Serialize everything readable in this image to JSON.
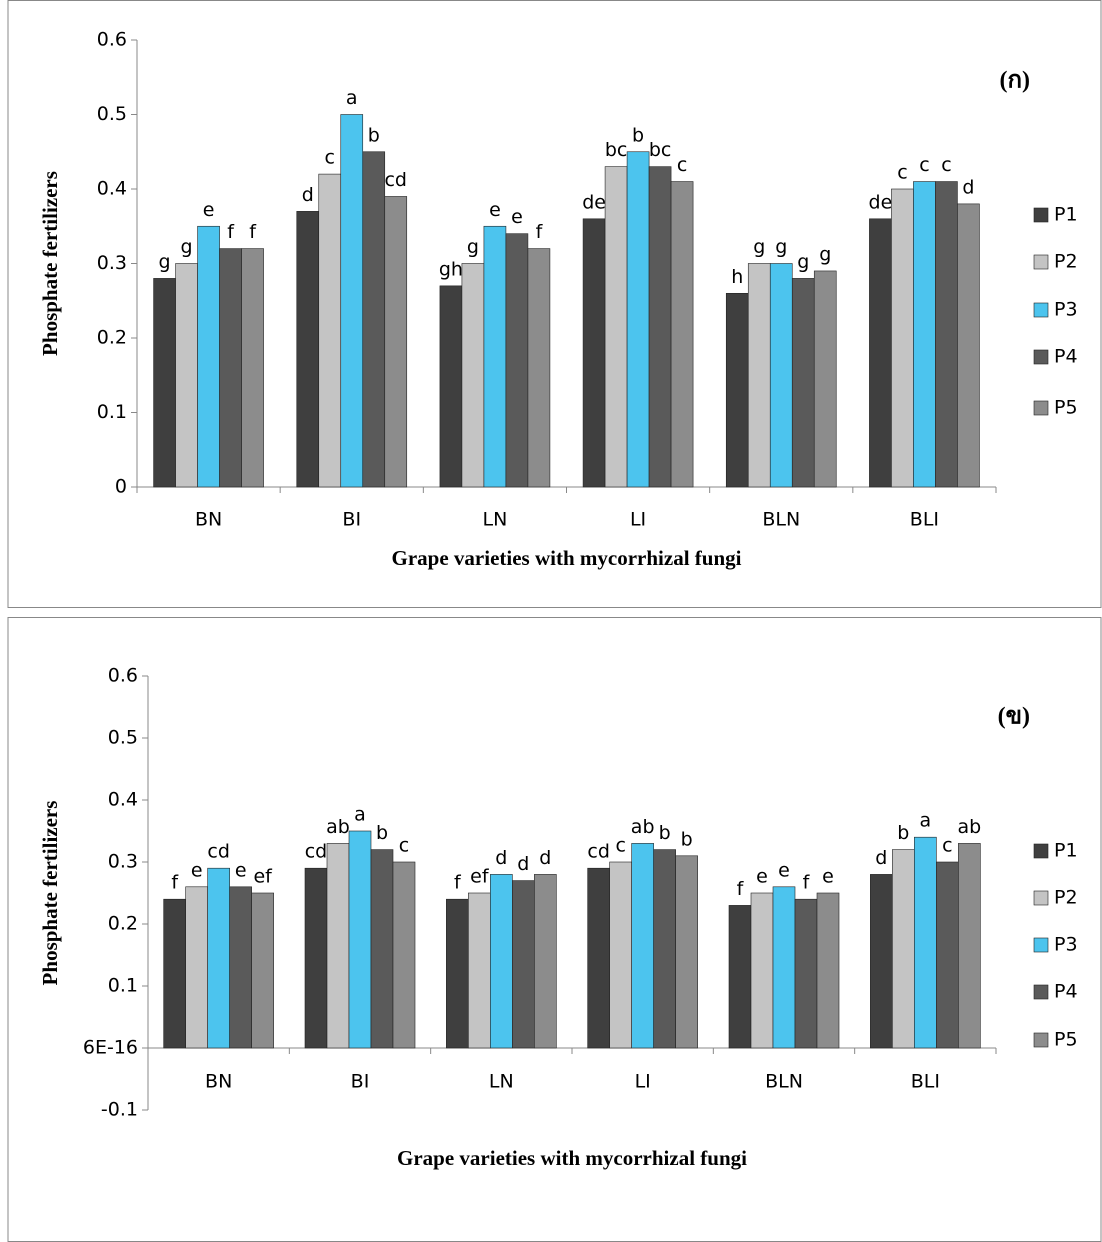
{
  "chart_data": [
    {
      "type": "bar",
      "annotation": "(ก)",
      "y_label": "Phosphate fertilizers",
      "x_label": "Grape varieties with mycorrhizal fungi",
      "categories": [
        "BN",
        "BI",
        "LN",
        "LI",
        "BLN",
        "BLI"
      ],
      "series": [
        {
          "name": "P1",
          "color": "#3f3f3f",
          "values": [
            0.28,
            0.37,
            0.27,
            0.36,
            0.26,
            0.36
          ],
          "value_labels": [
            "g",
            "d",
            "gh",
            "de",
            "h",
            "de"
          ]
        },
        {
          "name": "P2",
          "color": "#c4c4c4",
          "values": [
            0.3,
            0.42,
            0.3,
            0.43,
            0.3,
            0.4
          ],
          "value_labels": [
            "g",
            "c",
            "g",
            "bc",
            "g",
            "c"
          ]
        },
        {
          "name": "P3",
          "color": "#4cc4ee",
          "values": [
            0.35,
            0.5,
            0.35,
            0.45,
            0.3,
            0.41
          ],
          "value_labels": [
            "e",
            "a",
            "e",
            "b",
            "g",
            "c"
          ]
        },
        {
          "name": "P4",
          "color": "#5a5a5a",
          "values": [
            0.32,
            0.45,
            0.34,
            0.43,
            0.28,
            0.41
          ],
          "value_labels": [
            "f",
            "b",
            "e",
            "bc",
            "g",
            "c"
          ]
        },
        {
          "name": "P5",
          "color": "#8c8c8c",
          "values": [
            0.32,
            0.39,
            0.32,
            0.41,
            0.29,
            0.38
          ],
          "value_labels": [
            "f",
            "cd",
            "f",
            "c",
            "g",
            "d"
          ]
        }
      ],
      "ylim": [
        0,
        0.6
      ],
      "yticks": [
        0,
        0.1,
        0.2,
        0.3,
        0.4,
        0.5,
        0.6
      ],
      "legend": "right"
    },
    {
      "type": "bar",
      "annotation": "(ข)",
      "y_label": "Phosphate fertilizers",
      "x_label": "Grape varieties with mycorrhizal fungi",
      "categories": [
        "BN",
        "BI",
        "LN",
        "LI",
        "BLN",
        "BLI"
      ],
      "series": [
        {
          "name": "P1",
          "color": "#3f3f3f",
          "values": [
            0.24,
            0.29,
            0.24,
            0.29,
            0.23,
            0.28
          ],
          "value_labels": [
            "f",
            "cd",
            "f",
            "cd",
            "f",
            "d"
          ]
        },
        {
          "name": "P2",
          "color": "#c4c4c4",
          "values": [
            0.26,
            0.33,
            0.25,
            0.3,
            0.25,
            0.32
          ],
          "value_labels": [
            "e",
            "ab",
            "ef",
            "c",
            "e",
            "b"
          ]
        },
        {
          "name": "P3",
          "color": "#4cc4ee",
          "values": [
            0.29,
            0.35,
            0.28,
            0.33,
            0.26,
            0.34
          ],
          "value_labels": [
            "cd",
            "a",
            "d",
            "ab",
            "e",
            "a"
          ]
        },
        {
          "name": "P4",
          "color": "#5a5a5a",
          "values": [
            0.26,
            0.32,
            0.27,
            0.32,
            0.24,
            0.3
          ],
          "value_labels": [
            "e",
            "b",
            "d",
            "b",
            "f",
            "c"
          ]
        },
        {
          "name": "P5",
          "color": "#8c8c8c",
          "values": [
            0.25,
            0.3,
            0.28,
            0.31,
            0.25,
            0.33
          ],
          "value_labels": [
            "ef",
            "c",
            "d",
            "b",
            "e",
            "ab"
          ]
        }
      ],
      "ylim": [
        -0.1,
        0.6
      ],
      "yticks": [
        -0.1,
        {
          "value": 6e-16,
          "label": "6E-16"
        },
        0.1,
        0.2,
        0.3,
        0.4,
        0.5,
        0.6
      ],
      "legend": "right"
    }
  ]
}
